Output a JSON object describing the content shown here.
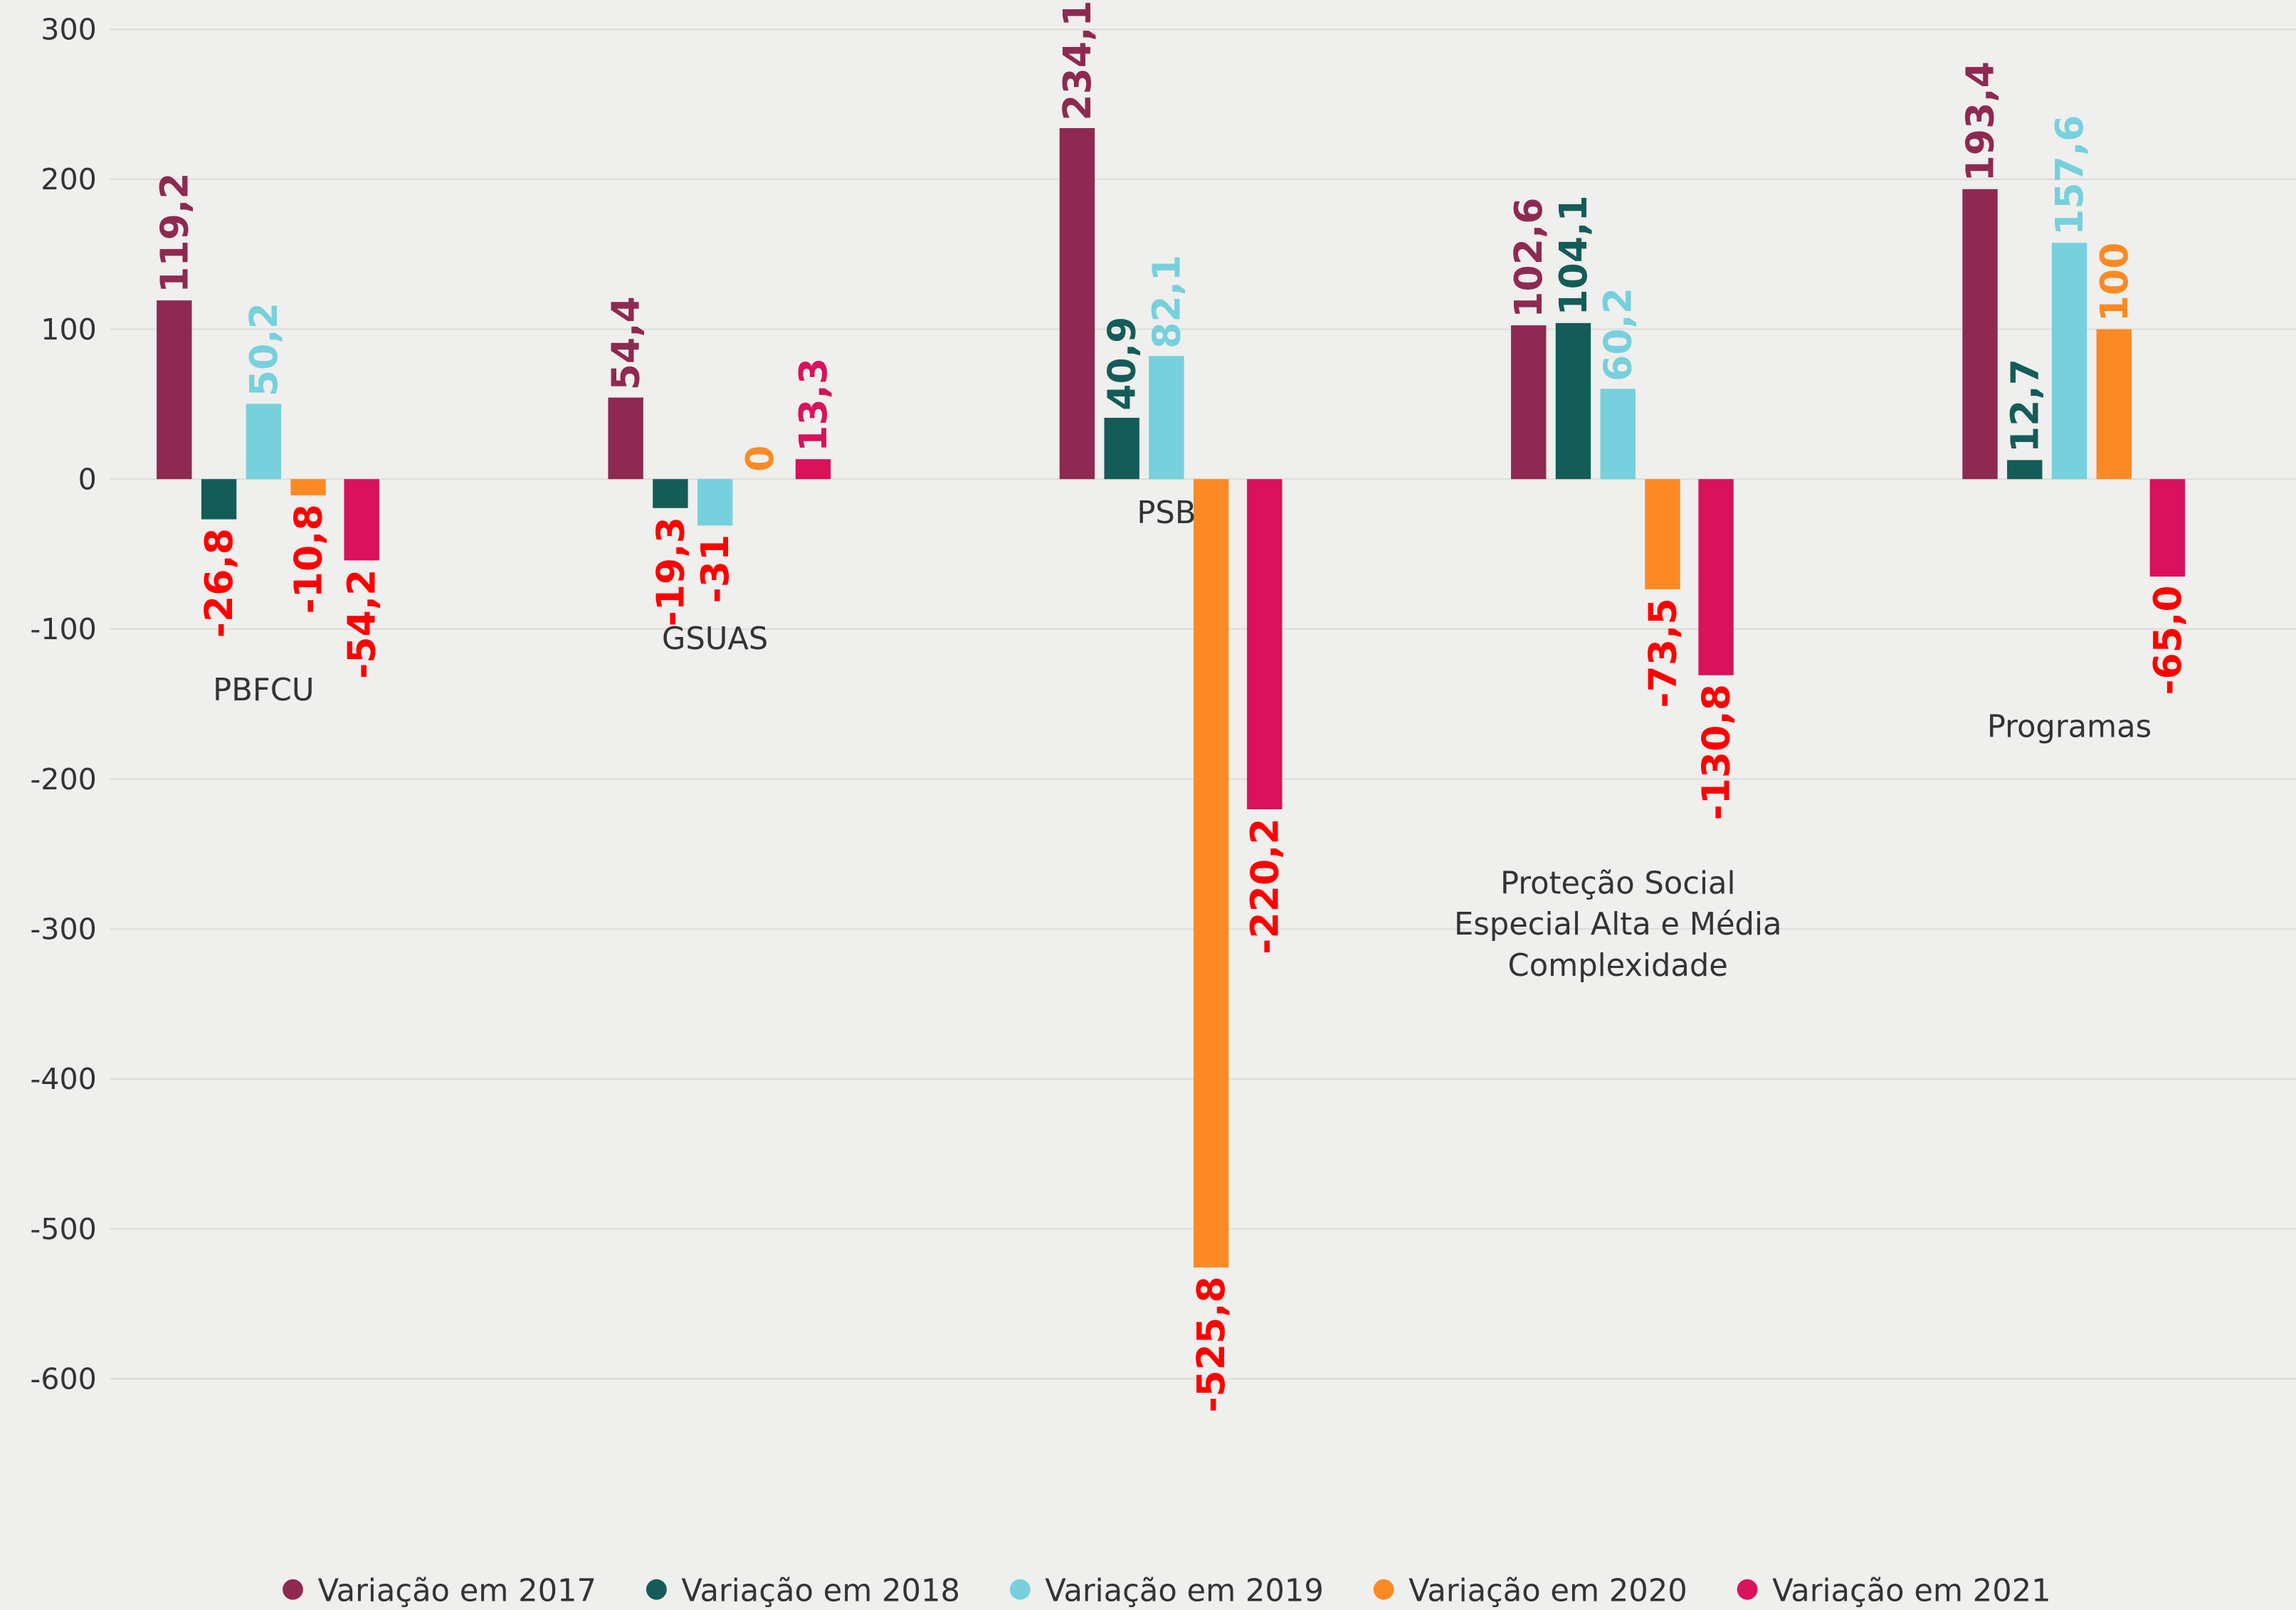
{
  "chart_data": {
    "type": "bar",
    "categories": [
      "PBFCU",
      "GSUAS",
      "PSB",
      "Proteção Social Especial Alta e Média Complexidade",
      "Programas"
    ],
    "series": [
      {
        "name": "Variação em 2017",
        "color": "#8e2952",
        "values": [
          119.2,
          54.4,
          234.1,
          102.6,
          193.4
        ],
        "value_labels": [
          "119,2",
          "54,4",
          "234,1",
          "102,6",
          "193,4"
        ]
      },
      {
        "name": "Variação em 2018",
        "color": "#135c58",
        "values": [
          -26.8,
          -19.3,
          40.9,
          104.1,
          12.7
        ],
        "value_labels": [
          "-26,8",
          "-19,3",
          "40,9",
          "104,1",
          "12,7"
        ]
      },
      {
        "name": "Variação em 2019",
        "color": "#76d1dc",
        "values": [
          50.2,
          -31,
          82.1,
          60.2,
          157.6
        ],
        "value_labels": [
          "50,2",
          "-31",
          "82,1",
          "60,2",
          "157,6"
        ]
      },
      {
        "name": "Variação em 2020",
        "color": "#fb8a24",
        "values": [
          -10.8,
          0,
          -525.8,
          -73.5,
          100
        ],
        "value_labels": [
          "-10,8",
          "0",
          "-525,8",
          "-73,5",
          "100"
        ]
      },
      {
        "name": "Variação em 2021",
        "color": "#d8125b",
        "values": [
          -54.2,
          13.3,
          -220.2,
          -130.8,
          -65.0
        ],
        "value_labels": [
          "-54,2",
          "13,3",
          "-220,2",
          "-130,8",
          "-65,0"
        ]
      }
    ],
    "negative_label_color": "#ff0000",
    "ylim": [
      -700,
      300
    ],
    "yticks": [
      300,
      200,
      100,
      0,
      -100,
      -200,
      -300,
      -400,
      -500,
      -600
    ],
    "grid": true,
    "legend": "bottom"
  }
}
